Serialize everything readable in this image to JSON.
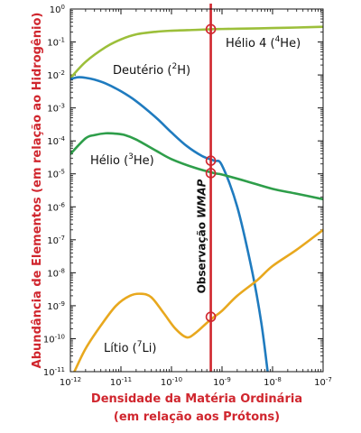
{
  "chart_data": {
    "type": "line",
    "xlabel_line1": "Densidade da Matéria Ordinária",
    "xlabel_line2": "(em relação aos Prótons)",
    "ylabel": "Abundância de Elementos (em relação ao Hidrogênio)",
    "x_scale": "log",
    "y_scale": "log",
    "xlim": [
      1e-12,
      1e-07
    ],
    "ylim": [
      1e-11,
      1
    ],
    "x_ticks": [
      {
        "base": "10",
        "exp": "-12",
        "value": 1e-12
      },
      {
        "base": "10",
        "exp": "-11",
        "value": 1e-11
      },
      {
        "base": "10",
        "exp": "-10",
        "value": 1e-10
      },
      {
        "base": "10",
        "exp": "-9",
        "value": 1e-09
      },
      {
        "base": "10",
        "exp": "-8",
        "value": 1e-08
      },
      {
        "base": "10",
        "exp": "-7",
        "value": 1e-07
      }
    ],
    "y_ticks": [
      {
        "base": "10",
        "exp": "0",
        "value": 1
      },
      {
        "base": "10",
        "exp": "-1",
        "value": 0.1
      },
      {
        "base": "10",
        "exp": "-2",
        "value": 0.01
      },
      {
        "base": "10",
        "exp": "-3",
        "value": 0.001
      },
      {
        "base": "10",
        "exp": "-4",
        "value": 0.0001
      },
      {
        "base": "10",
        "exp": "-5",
        "value": 1e-05
      },
      {
        "base": "10",
        "exp": "-6",
        "value": 1e-06
      },
      {
        "base": "10",
        "exp": "-7",
        "value": 1e-07
      },
      {
        "base": "10",
        "exp": "-8",
        "value": 1e-08
      },
      {
        "base": "10",
        "exp": "-9",
        "value": 1e-09
      },
      {
        "base": "10",
        "exp": "-10",
        "value": 1e-10
      },
      {
        "base": "10",
        "exp": "-11",
        "value": 1e-11
      }
    ],
    "series": [
      {
        "name": "Hélio 4 (4He)",
        "label_parts": {
          "pre": "Hélio 4 (",
          "sup": "4",
          "post": "He)"
        },
        "color": "#9cbf3a",
        "x": [
          1e-12,
          2e-12,
          5e-12,
          1e-11,
          2e-11,
          5e-11,
          1e-10,
          3e-10,
          7e-10,
          1e-09,
          3e-09,
          1e-08,
          3e-08,
          1e-07
        ],
        "y": [
          0.008,
          0.025,
          0.07,
          0.12,
          0.17,
          0.205,
          0.22,
          0.233,
          0.245,
          0.248,
          0.255,
          0.265,
          0.275,
          0.29
        ]
      },
      {
        "name": "Deutério (2H)",
        "label_parts": {
          "pre": "Deutério (",
          "sup": "2",
          "post": "H)"
        },
        "color": "#1f7bbf",
        "x": [
          1e-12,
          1.4e-12,
          2e-12,
          3e-12,
          5e-12,
          1e-11,
          2e-11,
          5e-11,
          1e-10,
          2e-10,
          4e-10,
          7e-10,
          1e-09,
          2e-09,
          4e-09,
          6e-09,
          8e-09
        ],
        "y": [
          0.0075,
          0.0085,
          0.0082,
          0.0072,
          0.0055,
          0.0032,
          0.0016,
          0.0005,
          0.00018,
          7e-05,
          3.5e-05,
          2.5e-05,
          1.8e-05,
          1e-06,
          1e-08,
          3e-10,
          1e-11
        ]
      },
      {
        "name": "Hélio (3He)",
        "label_parts": {
          "pre": "Hélio (",
          "sup": "3",
          "post": "He)"
        },
        "color": "#2e9e4a",
        "x": [
          1e-12,
          2e-12,
          3e-12,
          5e-12,
          8e-12,
          1.2e-11,
          2e-11,
          5e-11,
          1e-10,
          3e-10,
          7e-10,
          1e-09,
          3e-09,
          1e-08,
          3e-08,
          1e-07
        ],
        "y": [
          4e-05,
          0.00012,
          0.00015,
          0.00017,
          0.000165,
          0.00015,
          0.00011,
          5e-05,
          2.8e-05,
          1.5e-05,
          1.05e-05,
          9.5e-06,
          6e-06,
          3.5e-06,
          2.5e-06,
          1.7e-06
        ]
      },
      {
        "name": "Lítio (7Li)",
        "label_parts": {
          "pre": "Lítio (",
          "sup": "7",
          "post": "Li)"
        },
        "color": "#e8a81e",
        "x": [
          1.2e-12,
          2e-12,
          4e-12,
          8e-12,
          1.5e-11,
          2.5e-11,
          4e-11,
          7e-11,
          1.2e-10,
          2e-10,
          3e-10,
          5e-10,
          7e-10,
          1e-09,
          2e-09,
          5e-09,
          1e-08,
          3e-08,
          1e-07
        ],
        "y": [
          1e-11,
          5e-11,
          2.5e-10,
          1e-09,
          2e-09,
          2.3e-09,
          1.8e-09,
          6e-10,
          2e-10,
          1.1e-10,
          1.5e-10,
          3e-10,
          4.6e-10,
          7e-10,
          2e-09,
          6e-09,
          1.6e-08,
          5e-08,
          2e-07
        ]
      }
    ],
    "observation": {
      "label_pre": "Observação ",
      "label_em": "WMAP",
      "x": 6e-10,
      "color": "#d0262e",
      "markers": [
        {
          "series": "Hélio 4 (4He)",
          "y": 0.245
        },
        {
          "series": "Deutério (2H)",
          "y": 2.5e-05
        },
        {
          "series": "Hélio (3He)",
          "y": 1.05e-05
        },
        {
          "series": "Lítio (7Li)",
          "y": 4.6e-10
        }
      ]
    }
  }
}
